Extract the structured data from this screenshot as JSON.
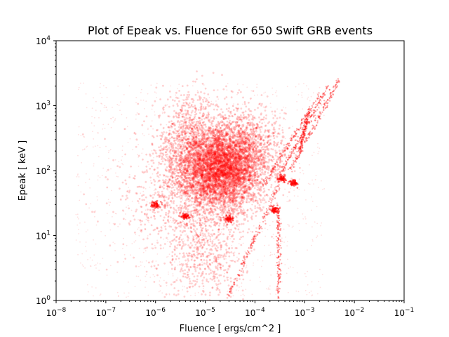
{
  "chart_data": {
    "type": "scatter",
    "title": "Plot of Epeak vs. Fluence for 650 Swift GRB events",
    "xlabel": "Fluence [ ergs/cm^2 ]",
    "ylabel": "Epeak [ keV ]",
    "xscale": "log",
    "yscale": "log",
    "xlim": [
      1e-08,
      0.1
    ],
    "ylim": [
      1,
      10000
    ],
    "grid": false,
    "marker_color": "#ff0000",
    "x_ticks": [
      {
        "base": "10",
        "exp": "−8",
        "value": 1e-08
      },
      {
        "base": "10",
        "exp": "−7",
        "value": 1e-07
      },
      {
        "base": "10",
        "exp": "−6",
        "value": 1e-06
      },
      {
        "base": "10",
        "exp": "−5",
        "value": 1e-05
      },
      {
        "base": "10",
        "exp": "−4",
        "value": 0.0001
      },
      {
        "base": "10",
        "exp": "−3",
        "value": 0.001
      },
      {
        "base": "10",
        "exp": "−2",
        "value": 0.01
      },
      {
        "base": "10",
        "exp": "−1",
        "value": 0.1
      }
    ],
    "y_ticks": [
      {
        "base": "10",
        "exp": "0",
        "value": 1
      },
      {
        "base": "10",
        "exp": "1",
        "value": 10
      },
      {
        "base": "10",
        "exp": "2",
        "value": 100
      },
      {
        "base": "10",
        "exp": "3",
        "value": 1000
      },
      {
        "base": "10",
        "exp": "4",
        "value": 10000
      }
    ],
    "density_regions": [
      {
        "x": 2e-05,
        "y": 80,
        "sx": 0.5,
        "sy": 0.32,
        "weight": 0.38
      },
      {
        "x": 5e-06,
        "y": 250,
        "sx": 0.35,
        "sy": 0.38,
        "weight": 0.22
      },
      {
        "x": 6e-05,
        "y": 250,
        "sx": 0.4,
        "sy": 0.3,
        "weight": 0.2
      },
      {
        "x": 1e-05,
        "y": 5,
        "sx": 0.4,
        "sy": 0.35,
        "weight": 0.1
      },
      {
        "x": 3e-06,
        "y": 30,
        "sx": 0.6,
        "sy": 0.5,
        "weight": 0.1
      }
    ],
    "streaks": [
      {
        "x1": 0.0003,
        "y1": 80,
        "x2": 0.003,
        "y2": 2000
      },
      {
        "x1": 0.00015,
        "y1": 60,
        "x2": 0.002,
        "y2": 1500
      },
      {
        "x1": 0.0005,
        "y1": 100,
        "x2": 0.005,
        "y2": 2500
      },
      {
        "x1": 0.0008,
        "y1": 200,
        "x2": 0.0012,
        "y2": 800
      },
      {
        "x1": 3e-05,
        "y1": 1.2,
        "x2": 0.0003,
        "y2": 60
      },
      {
        "x1": 0.0003,
        "y1": 1.1,
        "x2": 0.0003,
        "y2": 30
      }
    ],
    "blobs": [
      {
        "x": 1e-06,
        "y": 30
      },
      {
        "x": 4e-06,
        "y": 20
      },
      {
        "x": 3e-05,
        "y": 18
      },
      {
        "x": 0.00025,
        "y": 25
      },
      {
        "x": 0.0006,
        "y": 65
      },
      {
        "x": 0.00035,
        "y": 75
      }
    ]
  }
}
